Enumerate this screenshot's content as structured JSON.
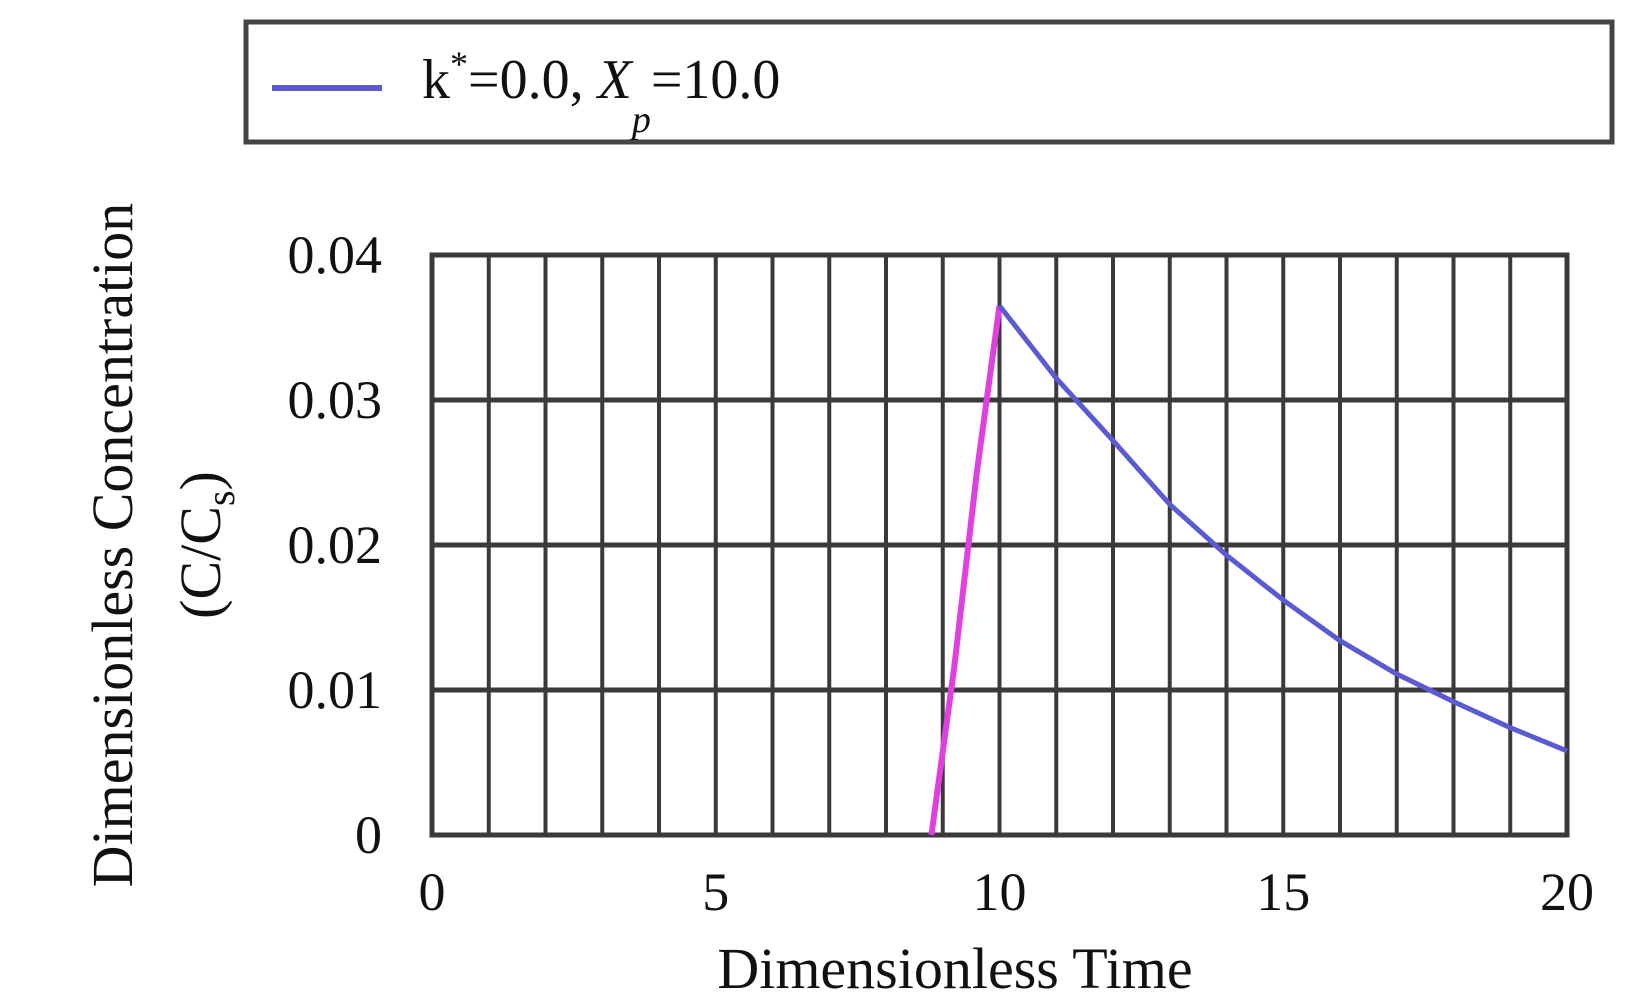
{
  "chart_data": {
    "type": "line",
    "xlabel": "Dimensionless Time",
    "ylabel": {
      "line1": "Dimensionless Concentration",
      "line2_prefix": "(C/C",
      "line2_sub": "s",
      "line2_suffix": ")"
    },
    "xlim": [
      0,
      20
    ],
    "ylim": [
      0,
      0.04
    ],
    "xticks": [
      {
        "value": 0,
        "label": "0"
      },
      {
        "value": 5,
        "label": "5"
      },
      {
        "value": 10,
        "label": "10"
      },
      {
        "value": 15,
        "label": "15"
      },
      {
        "value": 20,
        "label": "20"
      }
    ],
    "yticks": [
      {
        "value": 0,
        "label": "0"
      },
      {
        "value": 0.01,
        "label": "0.01"
      },
      {
        "value": 0.02,
        "label": "0.02"
      },
      {
        "value": 0.03,
        "label": "0.03"
      },
      {
        "value": 0.04,
        "label": "0.04"
      }
    ],
    "grid": true,
    "legend_position": "top",
    "legend": {
      "k_text": "k",
      "k_sup": "*",
      "k_value": "=0.0, ",
      "x_text": "X",
      "x_sub": "p",
      "x_value": "=10.0"
    },
    "series": [
      {
        "color": "#e040e0",
        "x": [
          8.8,
          9.2,
          9.6,
          10.0
        ],
        "y": [
          0.0,
          0.0115,
          0.025,
          0.0365
        ]
      },
      {
        "color": "#5a5ad2",
        "x": [
          10.0,
          11.0,
          12.0,
          13.0,
          14.0,
          15.0,
          16.0,
          17.0,
          18.0,
          19.0,
          20.0
        ],
        "y": [
          0.0365,
          0.0315,
          0.0272,
          0.0228,
          0.0193,
          0.0162,
          0.0134,
          0.0111,
          0.0092,
          0.0074,
          0.0058
        ]
      }
    ],
    "colors": {
      "grid": "#3a3a3a",
      "legend_line": "#5a5ad2",
      "rise_line": "#e040e0",
      "decay_line": "#5a5ad2"
    }
  }
}
